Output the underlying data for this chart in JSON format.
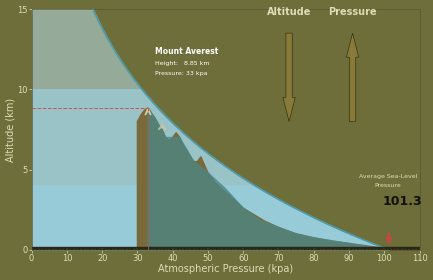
{
  "bg_color": "#6e6e3a",
  "plot_bg_color": "#6e6e3a",
  "xlabel": "Atmospheric Pressure (kpa)",
  "ylabel": "Altitude (km)",
  "xlim": [
    0,
    110
  ],
  "ylim": [
    0,
    15
  ],
  "xticks": [
    0,
    10,
    20,
    30,
    40,
    50,
    60,
    70,
    80,
    90,
    100,
    110
  ],
  "yticks": [
    0,
    5,
    10,
    15
  ],
  "fill_light": "#b8dce8",
  "fill_mid": "#7bbfcc",
  "fill_dark": "#5aaabb",
  "curve_line_color": "#4a9aaa",
  "mountain_brown": "#7a6a3a",
  "mountain_dark": "#5a5a2a",
  "mountain_teal": "#4a8888",
  "mountain_snow": "#c8caa0",
  "dashed_color": "#cc4444",
  "arrow_color": "#8a7a3a",
  "label_color": "#ddddb8",
  "white": "#ffffff",
  "dark_bar": "#282818",
  "sea_level_value": 101.3,
  "everest_height": 8.85,
  "everest_pressure": 33,
  "axis_label_fontsize": 7,
  "tick_fontsize": 6
}
